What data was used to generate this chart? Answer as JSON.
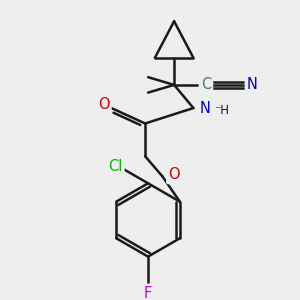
{
  "background_color": "#eeeeee",
  "bond_color": "#1a1a1a",
  "atom_colors": {
    "C": "#2f8080",
    "N": "#0000cc",
    "O": "#cc0000",
    "Cl": "#00bb00",
    "F": "#cc00cc",
    "H": "#1a1a1a"
  },
  "figsize": [
    3.0,
    3.0
  ],
  "dpi": 100
}
